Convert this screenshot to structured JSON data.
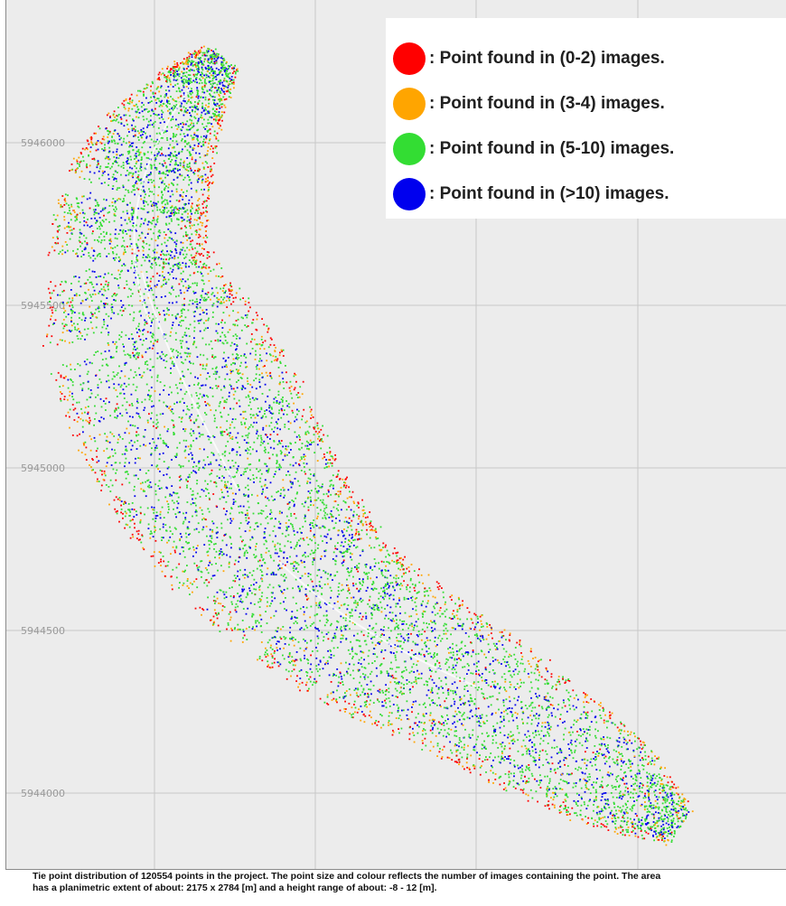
{
  "chart_data": {
    "type": "scatter",
    "title": "",
    "xlabel": "",
    "ylabel": "",
    "y_ticks": [
      "5946000",
      "5945500",
      "5945000",
      "5944500",
      "5944000"
    ],
    "y_tick_values": [
      5946000,
      5945500,
      5945000,
      5944500,
      5944000
    ],
    "x_tick_labels": [
      "",
      "",
      ""
    ],
    "grid": true,
    "legend_placement": "top-right",
    "series": [
      {
        "name": "Point found in (0-2) images.",
        "label": ": Point found in (0-2) images.",
        "color": "#ff0000",
        "count_hint": "edge"
      },
      {
        "name": "Point found in (3-4) images.",
        "label": ": Point found in (3-4) images.",
        "color": "#ffa500",
        "count_hint": "edge"
      },
      {
        "name": "Point found in (5-10) images.",
        "label": ": Point found in (5-10) images.",
        "color": "#33dd33",
        "count_hint": "majority"
      },
      {
        "name": "Point found in (>10) images.",
        "label": ": Point found in (>10) images.",
        "color": "#0000ee",
        "count_hint": "core"
      }
    ],
    "total_points": 120554,
    "planimetric_extent_m": [
      2175,
      2784
    ],
    "height_range_m": [
      -8,
      12
    ]
  },
  "caption": {
    "line1": "Tie point distribution of 120554 points in the project. The point size and colour reflects the number of images containing the point. The area",
    "line2": "has a planimetric extent of about: 2175 x 2784 [m] and a height range of about: -8 - 12 [m]."
  }
}
